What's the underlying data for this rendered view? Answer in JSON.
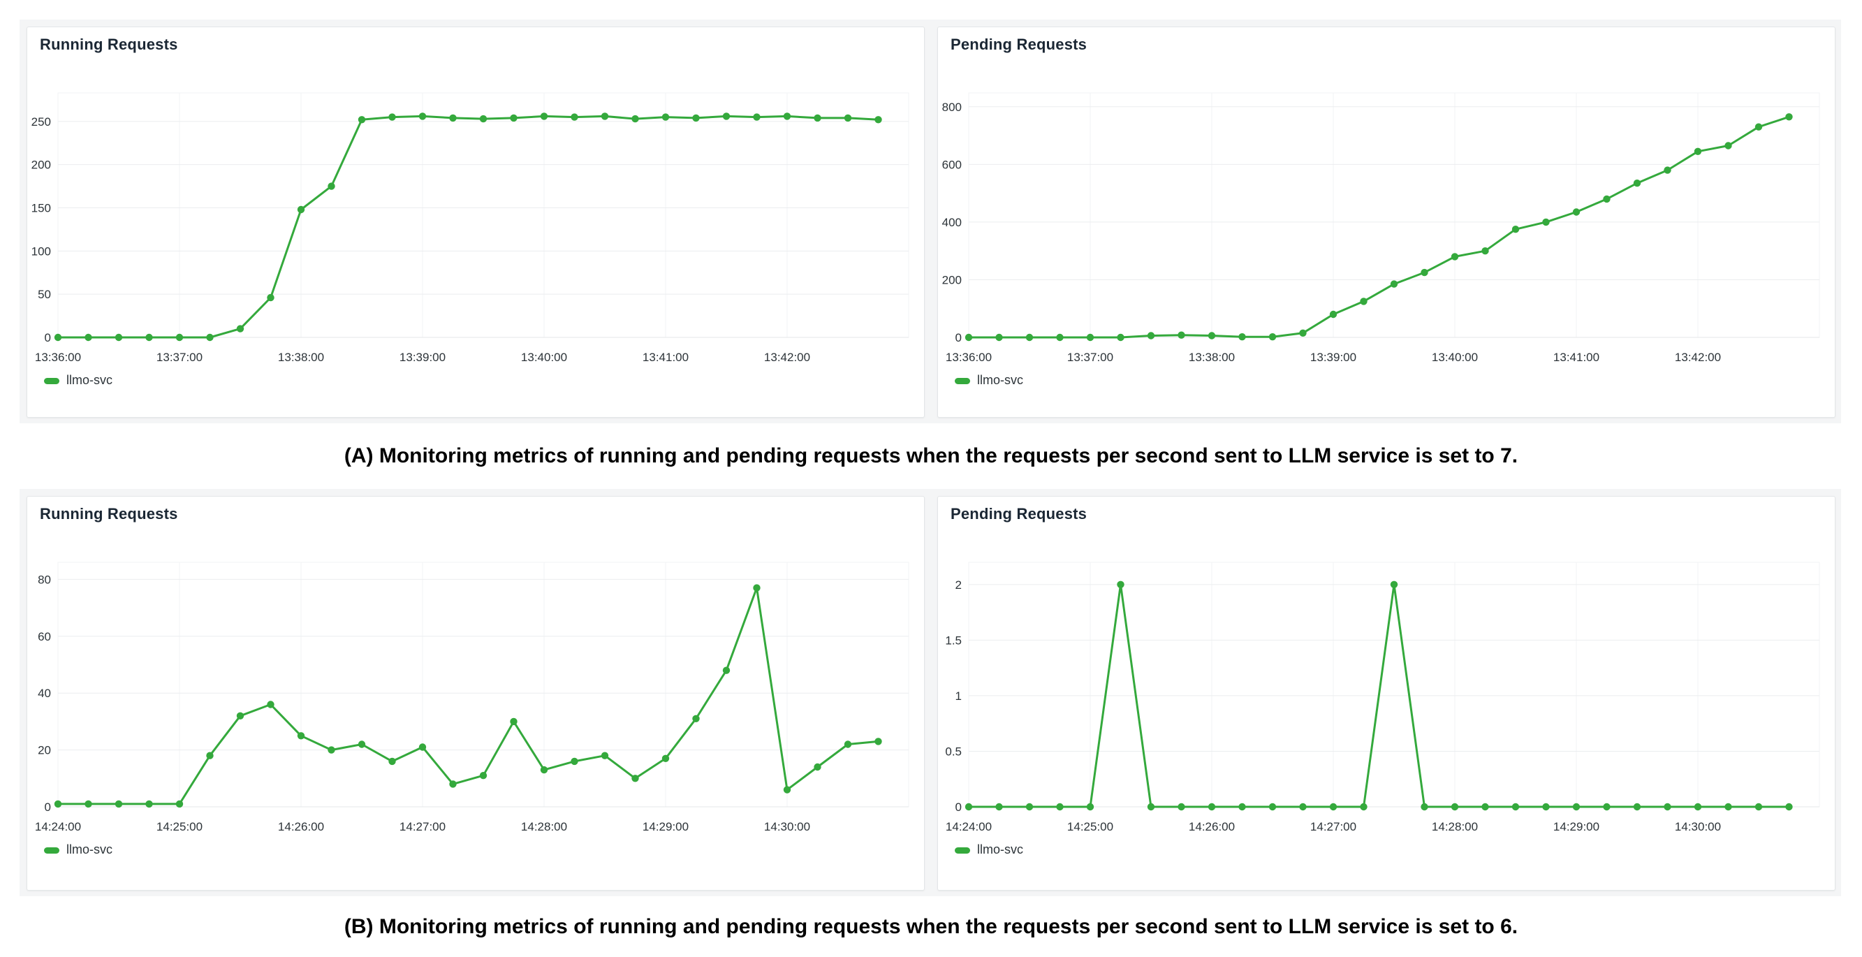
{
  "accent_color": "#34a93c",
  "captions": {
    "a": "(A) Monitoring metrics of running and pending requests when the requests per second sent to LLM service is set to 7.",
    "b": "(B) Monitoring metrics of running and pending requests when the requests per second sent to LLM service is set to 6."
  },
  "chart_data": [
    {
      "id": "running-requests-a",
      "type": "line",
      "title": "Running Requests",
      "xlabel": "",
      "ylabel": "",
      "grid": true,
      "legend_position": "bottom-left",
      "line_color": "#34a93c",
      "x": [
        "13:36:00",
        "13:36:15",
        "13:36:30",
        "13:36:45",
        "13:37:00",
        "13:37:15",
        "13:37:30",
        "13:37:45",
        "13:38:00",
        "13:38:15",
        "13:38:30",
        "13:38:45",
        "13:39:00",
        "13:39:15",
        "13:39:30",
        "13:39:45",
        "13:40:00",
        "13:40:15",
        "13:40:30",
        "13:40:45",
        "13:41:00",
        "13:41:15",
        "13:41:30",
        "13:41:45",
        "13:42:00",
        "13:42:15",
        "13:42:30",
        "13:42:45"
      ],
      "series": [
        {
          "name": "llmo-svc",
          "color": "#34a93c",
          "values": [
            0,
            0,
            0,
            0,
            0,
            0,
            10,
            46,
            148,
            175,
            252,
            255,
            256,
            254,
            253,
            254,
            256,
            255,
            256,
            253,
            255,
            254,
            256,
            255,
            256,
            254,
            254,
            252
          ]
        }
      ],
      "x_tick_labels": [
        "13:36:00",
        "13:37:00",
        "13:38:00",
        "13:39:00",
        "13:40:00",
        "13:41:00",
        "13:42:00"
      ],
      "y_ticks": [
        0,
        50,
        100,
        150,
        200,
        250
      ],
      "ylim": [
        0,
        283
      ]
    },
    {
      "id": "pending-requests-a",
      "type": "line",
      "title": "Pending Requests",
      "xlabel": "",
      "ylabel": "",
      "grid": true,
      "legend_position": "bottom-left",
      "line_color": "#34a93c",
      "x": [
        "13:36:00",
        "13:36:15",
        "13:36:30",
        "13:36:45",
        "13:37:00",
        "13:37:15",
        "13:37:30",
        "13:37:45",
        "13:38:00",
        "13:38:15",
        "13:38:30",
        "13:38:45",
        "13:39:00",
        "13:39:15",
        "13:39:30",
        "13:39:45",
        "13:40:00",
        "13:40:15",
        "13:40:30",
        "13:40:45",
        "13:41:00",
        "13:41:15",
        "13:41:30",
        "13:41:45",
        "13:42:00",
        "13:42:15",
        "13:42:30",
        "13:42:45"
      ],
      "series": [
        {
          "name": "llmo-svc",
          "color": "#34a93c",
          "values": [
            0,
            0,
            0,
            0,
            0,
            0,
            6,
            8,
            6,
            2,
            2,
            15,
            80,
            125,
            185,
            225,
            280,
            300,
            375,
            400,
            435,
            480,
            535,
            580,
            645,
            665,
            730,
            765
          ]
        }
      ],
      "x_tick_labels": [
        "13:36:00",
        "13:37:00",
        "13:38:00",
        "13:39:00",
        "13:40:00",
        "13:41:00",
        "13:42:00"
      ],
      "y_ticks": [
        0,
        200,
        400,
        600,
        800
      ],
      "ylim": [
        0,
        848
      ]
    },
    {
      "id": "running-requests-b",
      "type": "line",
      "title": "Running Requests",
      "xlabel": "",
      "ylabel": "",
      "grid": true,
      "legend_position": "bottom-left",
      "line_color": "#34a93c",
      "x": [
        "14:24:00",
        "14:24:15",
        "14:24:30",
        "14:24:45",
        "14:25:00",
        "14:25:15",
        "14:25:30",
        "14:25:45",
        "14:26:00",
        "14:26:15",
        "14:26:30",
        "14:26:45",
        "14:27:00",
        "14:27:15",
        "14:27:30",
        "14:27:45",
        "14:28:00",
        "14:28:15",
        "14:28:30",
        "14:28:45",
        "14:29:00",
        "14:29:15",
        "14:29:30",
        "14:29:45",
        "14:30:00",
        "14:30:15",
        "14:30:30",
        "14:30:45"
      ],
      "series": [
        {
          "name": "llmo-svc",
          "color": "#34a93c",
          "values": [
            1,
            1,
            1,
            1,
            1,
            18,
            32,
            36,
            25,
            20,
            22,
            16,
            21,
            8,
            11,
            30,
            13,
            16,
            18,
            10,
            17,
            31,
            48,
            77,
            6,
            14,
            22,
            23
          ]
        }
      ],
      "x_tick_labels": [
        "14:24:00",
        "14:25:00",
        "14:26:00",
        "14:27:00",
        "14:28:00",
        "14:29:00",
        "14:30:00"
      ],
      "y_ticks": [
        0,
        20,
        40,
        60,
        80
      ],
      "ylim": [
        0,
        86
      ]
    },
    {
      "id": "pending-requests-b",
      "type": "line",
      "title": "Pending Requests",
      "xlabel": "",
      "ylabel": "",
      "grid": true,
      "legend_position": "bottom-left",
      "line_color": "#34a93c",
      "x": [
        "14:24:00",
        "14:24:15",
        "14:24:30",
        "14:24:45",
        "14:25:00",
        "14:25:15",
        "14:25:30",
        "14:25:45",
        "14:26:00",
        "14:26:15",
        "14:26:30",
        "14:26:45",
        "14:27:00",
        "14:27:15",
        "14:27:30",
        "14:27:45",
        "14:28:00",
        "14:28:15",
        "14:28:30",
        "14:28:45",
        "14:29:00",
        "14:29:15",
        "14:29:30",
        "14:29:45",
        "14:30:00",
        "14:30:15",
        "14:30:30",
        "14:30:45"
      ],
      "series": [
        {
          "name": "llmo-svc",
          "color": "#34a93c",
          "values": [
            0,
            0,
            0,
            0,
            0,
            2,
            0,
            0,
            0,
            0,
            0,
            0,
            0,
            0,
            2,
            0,
            0,
            0,
            0,
            0,
            0,
            0,
            0,
            0,
            0,
            0,
            0,
            0
          ]
        }
      ],
      "x_tick_labels": [
        "14:24:00",
        "14:25:00",
        "14:26:00",
        "14:27:00",
        "14:28:00",
        "14:29:00",
        "14:30:00"
      ],
      "y_ticks": [
        0,
        0.5,
        1,
        1.5,
        2
      ],
      "ylim": [
        0,
        2.2
      ]
    }
  ]
}
